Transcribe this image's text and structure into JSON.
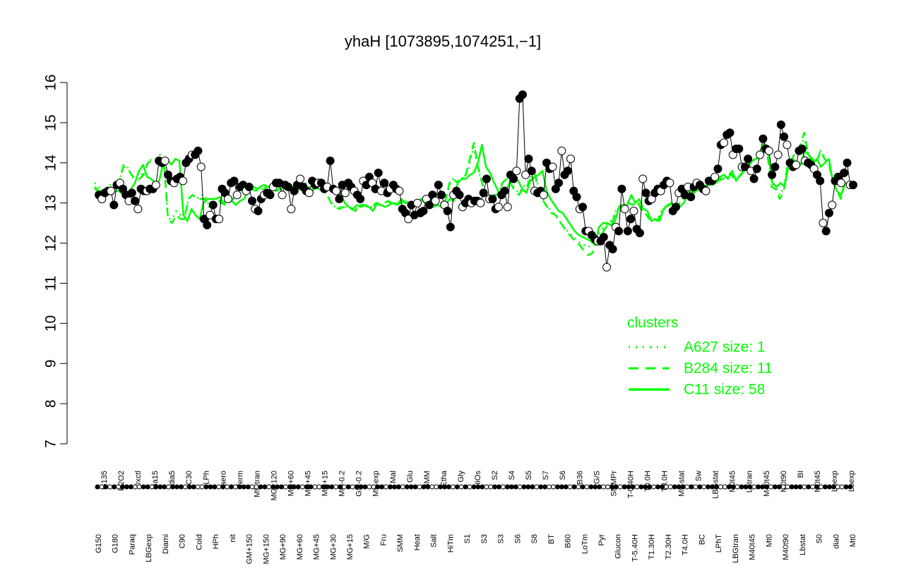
{
  "chart_data": {
    "type": "line",
    "title": "yhaH [1073895,1074251,−1]",
    "xlabel": "",
    "ylabel": "",
    "ylim": [
      7,
      16
    ],
    "yticks": [
      7,
      8,
      9,
      10,
      11,
      12,
      13,
      14,
      15,
      16
    ],
    "n_samples": 181,
    "labels_lower": [
      "G150",
      "G180",
      "Paraq",
      "LBGexp",
      "Diami",
      "C90",
      "Cold",
      "HPh",
      "nit",
      "GM+150",
      "MG+150",
      "MG+90",
      "MG+60",
      "MG+45",
      "MG+30",
      "MG+15",
      "M/G",
      "Fru",
      "SMM",
      "Heat",
      "Salt",
      "HiTm",
      "S1",
      "S3",
      "S3",
      "S6",
      "S8",
      "BT",
      "B60",
      "LoTm",
      "Pyr",
      "Glucon",
      "T-5.40H",
      "T1.30H",
      "T2.30H",
      "T4.0H",
      "BC",
      "LPhT",
      "LBGtran",
      "M40t45",
      "Mt0",
      "M40t90",
      "Lbstat",
      "S0",
      "dia0",
      "Mt0"
    ],
    "labels_upper": [
      "G135",
      "H2O2",
      "Oxctl",
      "dia15",
      "dia5",
      "C30",
      "LPh",
      "aero",
      "ferm",
      "M9-tran",
      "MG+120",
      "MG+60",
      "MG+45",
      "MG+15",
      "MG-0.2",
      "GM-0.2",
      "M9-exp",
      "Mal",
      "Glu",
      "BMM",
      "Etha",
      "Gly",
      "HiOs",
      "S2",
      "S4",
      "S5",
      "S7",
      "S6",
      "B36",
      "G/S",
      "SMMPr",
      "T-0.40H",
      "T0.0H",
      "T3.0H",
      "M9-stat",
      "Sw",
      "LBGstat",
      "M0t45",
      "Lbtran",
      "M40t45",
      "M0t90",
      "BI",
      "M0t45",
      "Lbexp",
      "Lbexp"
    ],
    "series": [
      {
        "name": "C11 size: 58",
        "style": "solid",
        "values": [
          13.35,
          13.3,
          13.3,
          13.25,
          13.4,
          13.3,
          13.3,
          13.2,
          13.2,
          13.35,
          13.5,
          13.8,
          13.95,
          13.65,
          13.6,
          13.5,
          13.55,
          14.0,
          14.1,
          13.95,
          14.1,
          14.05,
          12.7,
          12.55,
          12.85,
          12.7,
          12.6,
          13.0,
          13.1,
          13.1,
          13.1,
          13.15,
          13.0,
          13.1,
          13.05,
          12.95,
          13.05,
          13.1,
          13.3,
          13.35,
          13.3,
          13.4,
          13.45,
          13.4,
          13.35,
          13.3,
          13.35,
          13.4,
          13.45,
          13.4,
          13.3,
          13.35,
          13.4,
          13.35,
          13.3,
          13.4,
          13.45,
          13.3,
          13.4,
          13.3,
          13.3,
          13.2,
          13.0,
          12.9,
          12.85,
          12.95,
          12.9,
          12.95,
          12.9,
          12.8,
          13.0,
          12.95,
          12.9,
          12.95,
          13.0,
          12.95,
          13.1,
          13.0,
          13.0,
          12.95,
          13.0,
          13.1,
          13.05,
          13.1,
          13.05,
          12.95,
          12.9,
          12.95,
          13.1,
          13.05,
          13.5,
          13.6,
          13.6,
          13.7,
          13.75,
          14.0,
          14.45,
          13.9,
          13.75,
          13.5,
          13.3,
          13.25,
          13.3,
          13.55,
          13.6,
          13.55,
          13.35,
          13.25,
          13.55,
          13.65,
          13.7,
          13.8,
          13.3,
          13.1,
          12.95,
          12.8,
          12.75,
          12.6,
          12.45,
          12.3,
          12.2,
          12.15,
          12.1,
          12.05,
          11.95,
          12.4,
          12.5,
          12.5,
          12.45,
          12.55,
          12.9,
          12.95,
          12.95,
          13.2,
          13.0,
          13.1,
          12.85,
          12.8,
          12.55,
          12.6,
          12.55,
          12.85,
          12.95,
          13.0,
          12.85,
          12.9,
          13.0,
          13.2,
          13.3,
          13.3,
          13.35,
          13.3,
          13.5,
          13.45,
          13.5,
          13.65,
          13.7,
          13.6,
          13.8,
          13.55,
          13.7,
          13.8,
          13.95,
          14.05,
          14.1,
          14.3,
          14.5,
          14.2,
          13.5,
          13.4,
          13.5,
          13.4,
          13.95,
          14.1,
          14.0,
          13.95,
          14.3,
          14.2,
          14.0,
          14.1,
          13.9,
          14.0,
          14.1,
          13.5,
          13.3,
          13.2,
          13.5,
          13.45,
          13.4
        ]
      },
      {
        "name": "B284 size: 11",
        "style": "dashed",
        "values": [
          13.4,
          13.3,
          13.2,
          13.3,
          13.35,
          13.4,
          13.5,
          13.9,
          13.9,
          13.7,
          13.6,
          13.6,
          13.7,
          14.0,
          14.05,
          14.0,
          14.1,
          14.0,
          12.6,
          12.5,
          12.7,
          12.6,
          12.6,
          13.1,
          13.2,
          13.1,
          13.1,
          13.1,
          12.9,
          13.0,
          13.1,
          13.0,
          12.95,
          13.0,
          13.1,
          13.3,
          13.4,
          13.35,
          13.4,
          13.4,
          13.35,
          13.3,
          13.4,
          13.4,
          13.45,
          13.4,
          13.3,
          13.35,
          13.4,
          13.3,
          13.35,
          13.4,
          13.5,
          13.3,
          13.4,
          13.35,
          13.3,
          13.2,
          13.0,
          12.9,
          12.85,
          12.9,
          12.9,
          12.85,
          12.8,
          12.95,
          12.95,
          12.9,
          12.9,
          13.0,
          12.95,
          13.0,
          13.05,
          12.95,
          12.95,
          13.0,
          13.05,
          13.0,
          12.9,
          13.0,
          13.1,
          13.0,
          13.0,
          12.9,
          12.95,
          13.0,
          13.05,
          13.5,
          13.6,
          13.5,
          13.6,
          13.7,
          14.1,
          14.5,
          13.9,
          13.5,
          13.2,
          13.1,
          13.2,
          13.2,
          13.5,
          13.6,
          13.5,
          13.3,
          13.2,
          13.35,
          13.4,
          13.65,
          13.7,
          13.25,
          13.05,
          12.9,
          12.75,
          12.7,
          12.55,
          12.4,
          12.25,
          12.15,
          12.0,
          11.95,
          11.8,
          11.7,
          11.75,
          11.95,
          12.1,
          12.35,
          12.45,
          12.55,
          12.8,
          12.95,
          12.9,
          13.0,
          12.95,
          13.05,
          12.85,
          12.75,
          12.6,
          12.65,
          12.55,
          12.75,
          12.9,
          12.95,
          12.85,
          12.95,
          13.05,
          13.2,
          13.3,
          13.25,
          13.35,
          13.35,
          13.45,
          13.45,
          13.5,
          13.55,
          13.6,
          13.65,
          13.75,
          13.55,
          13.65,
          13.75,
          13.9,
          14.0,
          14.1,
          14.15,
          14.2,
          14.2,
          13.4,
          13.35,
          13.1,
          13.3,
          14.0,
          14.1,
          14.3,
          14.4,
          14.75,
          14.2,
          14.1,
          14.0,
          14.3,
          14.1,
          13.95,
          13.6,
          13.3,
          13.1,
          13.5,
          13.45,
          13.4
        ]
      },
      {
        "name": "A627 size: 1",
        "style": "dotted",
        "values": [
          13.5,
          13.4,
          13.1,
          13.3,
          13.5,
          13.5,
          13.5,
          13.95,
          13.9,
          13.7,
          13.5,
          13.6,
          13.8,
          14.0,
          14.1,
          14.1,
          14.2,
          14.1,
          12.6,
          12.6,
          12.8,
          12.7,
          12.6,
          13.1,
          13.2,
          13.1,
          13.2,
          13.2,
          12.95,
          13.1,
          13.1,
          13.05,
          12.95,
          13.05,
          13.1,
          13.2,
          13.35,
          13.35,
          13.4,
          13.4,
          13.35,
          13.35,
          13.4,
          13.45,
          13.45,
          13.4,
          13.3,
          13.35,
          13.4,
          13.35,
          13.35,
          13.45,
          13.5,
          13.3,
          13.4,
          13.4,
          13.3,
          13.2,
          13.0,
          12.9,
          12.9,
          12.9,
          12.9,
          12.85,
          12.85,
          12.95,
          12.95,
          12.9,
          12.9,
          13.0,
          12.95,
          13.0,
          13.05,
          13.0,
          13.0,
          13.0,
          13.05,
          13.0,
          12.95,
          13.0,
          13.1,
          13.05,
          13.05,
          12.95,
          12.95,
          13.0,
          13.05,
          13.45,
          13.6,
          13.55,
          13.6,
          13.7,
          14.0,
          14.4,
          13.85,
          13.5,
          13.2,
          13.15,
          13.2,
          13.25,
          13.5,
          13.6,
          13.5,
          13.35,
          13.25,
          13.4,
          13.5,
          13.65,
          13.75,
          13.3,
          13.1,
          12.9,
          12.8,
          12.7,
          12.55,
          12.4,
          12.3,
          12.2,
          12.1,
          12.0,
          11.95,
          11.9,
          11.95,
          12.1,
          12.3,
          12.4,
          12.5,
          12.6,
          12.85,
          12.95,
          12.95,
          13.05,
          12.95,
          13.05,
          12.85,
          12.75,
          12.6,
          12.6,
          12.6,
          12.8,
          12.9,
          12.95,
          12.9,
          12.95,
          13.05,
          13.2,
          13.3,
          13.3,
          13.35,
          13.35,
          13.45,
          13.45,
          13.5,
          13.6,
          13.65,
          13.65,
          13.75,
          13.55,
          13.65,
          13.8,
          13.9,
          14.05,
          14.1,
          14.2,
          14.25,
          14.3,
          13.5,
          13.4,
          13.2,
          13.4,
          14.05,
          14.1,
          14.3,
          14.45,
          14.6,
          14.25,
          14.1,
          14.05,
          14.3,
          14.15,
          14.0,
          13.6,
          13.3,
          13.15,
          13.5,
          13.45,
          13.4
        ]
      }
    ],
    "points": [
      13.2,
      13.1,
      13.25,
      13.3,
      13.3,
      12.95,
      13.45,
      13.5,
      13.35,
      13.2,
      13.05,
      13.25,
      13.05,
      12.85,
      13.35,
      13.3,
      13.3,
      13.35,
      13.35,
      13.45,
      14.05,
      14.0,
      14.05,
      13.7,
      13.55,
      13.5,
      13.6,
      13.65,
      13.55,
      14.0,
      14.1,
      14.2,
      14.2,
      14.3,
      13.9,
      12.6,
      12.45,
      12.7,
      12.95,
      12.6,
      12.6,
      13.35,
      13.25,
      13.1,
      13.5,
      13.55,
      13.2,
      13.4,
      13.45,
      13.3,
      13.4,
      13.05,
      12.85,
      12.8,
      13.1,
      13.2,
      13.25,
      13.2,
      13.4,
      13.5,
      13.5,
      13.2,
      13.45,
      13.4,
      12.85,
      13.3,
      13.45,
      13.6,
      13.4,
      13.3,
      13.25,
      13.55,
      13.45,
      13.5,
      13.5,
      13.35,
      13.4,
      14.05,
      13.35,
      13.3,
      13.1,
      13.45,
      13.25,
      13.5,
      13.4,
      13.3,
      13.2,
      13.1,
      13.55,
      13.45,
      13.65,
      13.5,
      13.35,
      13.75,
      13.3,
      13.5,
      13.25,
      13.35,
      13.45,
      13.35,
      13.3,
      12.85,
      12.75,
      12.6,
      12.95,
      12.7,
      13.0,
      12.75,
      12.8,
      13.1,
      12.95,
      13.2,
      13.05,
      13.45,
      13.2,
      12.95,
      12.8,
      12.4,
      13.2,
      13.3,
      13.2,
      12.9,
      13.0,
      13.1,
      13.0,
      13.05,
      13.05,
      13.0,
      13.25,
      13.6,
      13.1,
      13.1,
      12.85,
      12.9,
      13.2,
      13.3,
      12.9,
      13.7,
      13.6,
      13.8,
      15.6,
      15.7,
      13.7,
      14.1,
      13.8,
      13.3,
      13.25,
      13.3,
      13.2,
      14.0,
      13.85,
      13.9,
      13.35,
      13.5,
      14.3,
      13.7,
      13.8,
      14.1,
      13.3,
      13.15,
      12.85,
      12.9,
      12.3,
      12.3,
      12.2,
      12.1,
      12.05,
      12.05,
      12.15,
      11.4,
      11.95,
      11.85,
      12.4,
      12.3,
      13.35,
      12.85,
      12.3,
      12.6,
      12.8,
      12.35,
      12.25,
      13.6,
      13.25,
      13.05,
      13.1,
      13.25,
      13.35,
      13.3,
      13.45,
      13.55,
      13.5,
      12.8,
      12.9,
      13.25,
      13.35,
      13.2,
      13.4,
      13.15,
      13.4,
      13.5,
      13.45,
      13.35,
      13.3,
      13.55,
      13.55,
      13.65,
      13.85,
      14.45,
      14.5,
      14.7,
      14.75,
      14.2,
      14.35,
      14.35,
      13.9,
      13.9,
      14.1,
      13.8,
      13.6,
      13.85,
      14.2,
      14.6,
      14.35,
      14.3,
      13.7,
      13.9,
      14.2,
      14.95,
      14.65,
      14.45,
      14.0,
      13.9,
      13.95,
      14.3,
      14.35,
      14.05,
      14.0,
      13.95,
      13.85,
      13.7,
      13.55,
      12.5,
      12.3,
      12.75,
      12.95,
      13.55,
      13.65,
      13.5,
      13.75,
      14.0,
      13.45,
      13.45
    ]
  }
}
